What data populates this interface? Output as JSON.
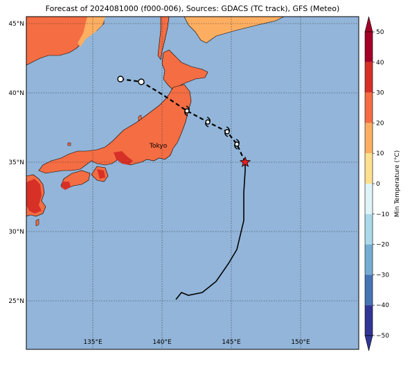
{
  "title": "Forecast of 2024081000 (f000-006), Sources: GDACS (TC track), GFS (Meteo)",
  "city_label": "Tokyo",
  "lat_ticks": [
    {
      "value": 45,
      "label": "45°N"
    },
    {
      "value": 40,
      "label": "40°N"
    },
    {
      "value": 35,
      "label": "35°N"
    },
    {
      "value": 30,
      "label": "30°N"
    },
    {
      "value": 25,
      "label": "25°N"
    }
  ],
  "lon_ticks": [
    {
      "value": 135,
      "label": "135°E"
    },
    {
      "value": 140,
      "label": "140°E"
    },
    {
      "value": 145,
      "label": "145°E"
    },
    {
      "value": 150,
      "label": "150°E"
    }
  ],
  "colorbar": {
    "label": "Min Temperature (°C)",
    "ticks": [
      "50",
      "40",
      "30",
      "20",
      "10",
      "0",
      "−10",
      "−20",
      "−30",
      "−40",
      "−50"
    ],
    "colors": [
      "#a50026",
      "#d73027",
      "#f46d43",
      "#fdae61",
      "#fee090",
      "#ffffbf",
      "#e0f3f8",
      "#abd9e9",
      "#74add1",
      "#4575b4",
      "#313695"
    ]
  },
  "colors": {
    "ocean": "#92b5d9",
    "land": "#f46d43",
    "land_warm": "#d73027",
    "land_cool": "#fdae61"
  },
  "past_track": [
    [
      141.0,
      25.1
    ],
    [
      141.4,
      25.6
    ],
    [
      141.9,
      25.4
    ],
    [
      142.9,
      25.6
    ],
    [
      143.9,
      26.4
    ],
    [
      144.8,
      27.7
    ],
    [
      145.4,
      28.7
    ],
    [
      145.9,
      30.8
    ],
    [
      145.9,
      32.8
    ],
    [
      146.0,
      34.4
    ],
    [
      146.0,
      35.0
    ]
  ],
  "current_position": [
    146.0,
    35.0
  ],
  "forecast_track": [
    [
      146.0,
      35.0
    ],
    [
      145.4,
      36.3
    ],
    [
      144.7,
      37.2
    ],
    [
      143.3,
      37.9
    ],
    [
      141.8,
      38.7
    ],
    [
      140.0,
      39.9
    ],
    [
      138.5,
      40.8
    ],
    [
      137.0,
      41.0
    ]
  ],
  "forecast_points": [
    [
      145.4,
      36.3
    ],
    [
      144.7,
      37.2
    ],
    [
      143.3,
      37.9
    ],
    [
      141.8,
      38.7
    ],
    [
      138.5,
      40.8
    ],
    [
      137.0,
      41.0
    ]
  ]
}
